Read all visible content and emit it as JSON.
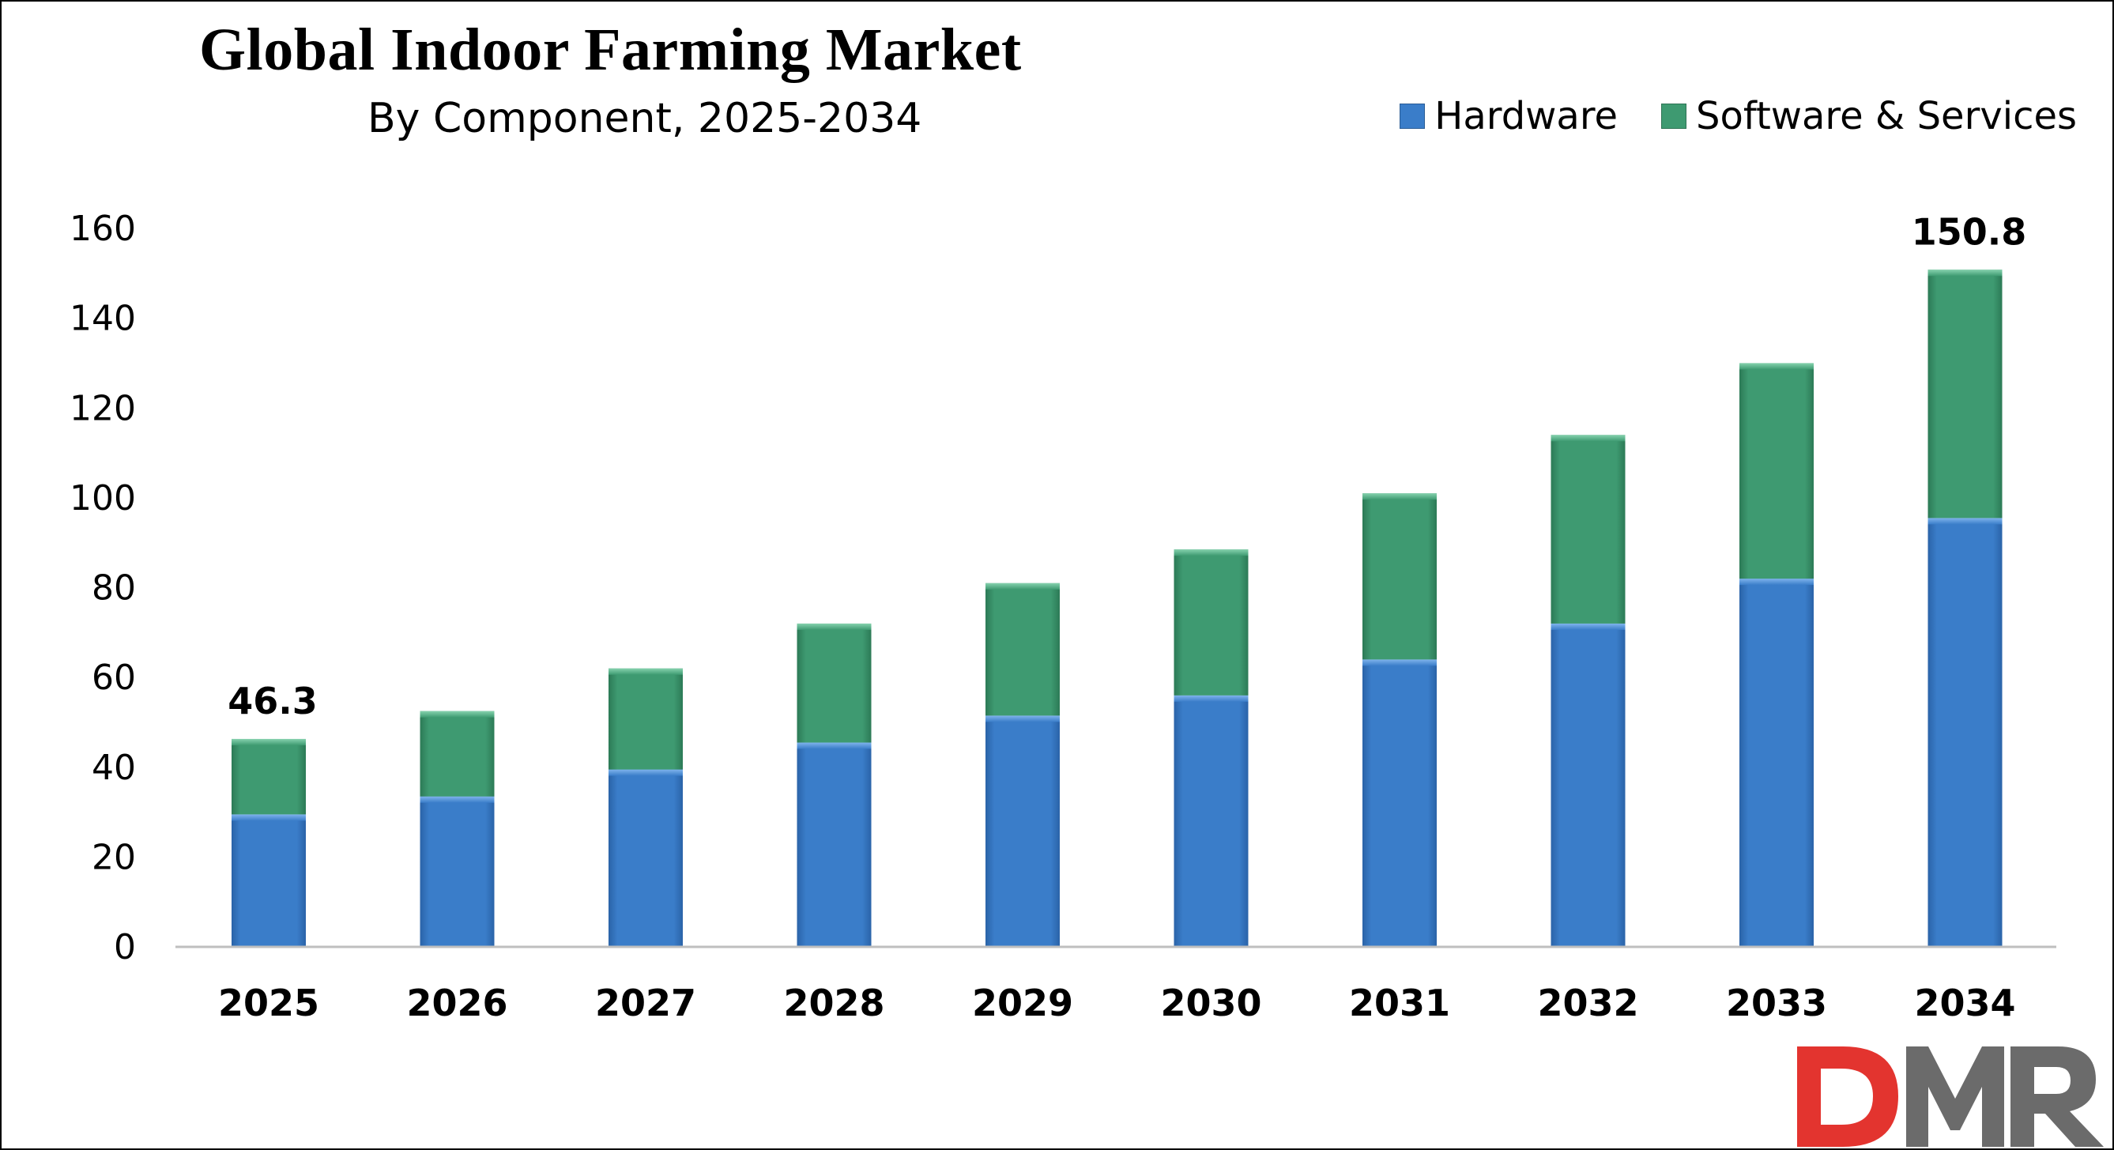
{
  "chart_data": {
    "type": "bar",
    "stacked": true,
    "title": "Global Indoor Farming Market",
    "subtitle": "By Component, 2025-2034",
    "categories": [
      "2025",
      "2026",
      "2027",
      "2028",
      "2029",
      "2030",
      "2031",
      "2032",
      "2033",
      "2034"
    ],
    "series": [
      {
        "name": "Hardware",
        "color": "#3A7DC9",
        "values": [
          29.5,
          33.5,
          39.5,
          45.5,
          51.5,
          56.0,
          64.0,
          72.0,
          82.0,
          95.5
        ]
      },
      {
        "name": "Software & Services",
        "color": "#3E9A71",
        "values": [
          16.8,
          19.0,
          22.5,
          26.5,
          29.5,
          32.5,
          37.0,
          42.0,
          48.0,
          55.3
        ]
      }
    ],
    "data_labels": [
      {
        "category": "2025",
        "text": "46.3"
      },
      {
        "category": "2034",
        "text": "150.8"
      }
    ],
    "xlabel": "",
    "ylabel": "",
    "ylim": [
      0,
      160
    ],
    "yticks": [
      0,
      20,
      40,
      60,
      80,
      100,
      120,
      140,
      160
    ],
    "grid": false,
    "legend_position": "top-right"
  },
  "logo": {
    "text": "DMR",
    "d_color": "#E3342F",
    "mr_color": "#6B6B6B"
  }
}
